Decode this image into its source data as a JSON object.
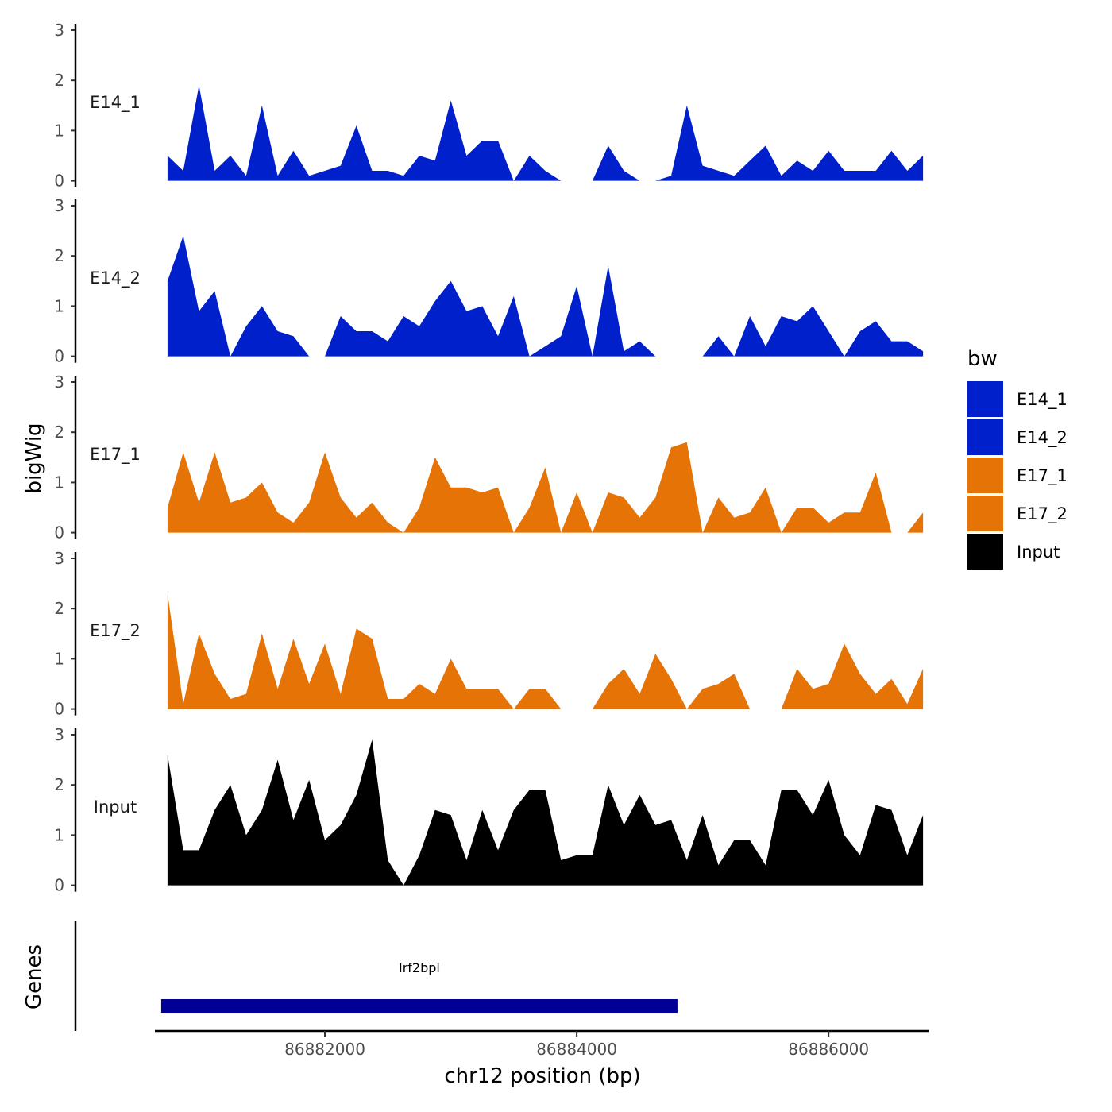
{
  "chart_data": {
    "type": "area",
    "ylabel": "bigWig",
    "xlabel": "chr12 position (bp)",
    "chromosome": "chr12",
    "xlim": [
      86880650,
      86886800
    ],
    "ylim": [
      0,
      3
    ],
    "y_ticks": [
      0,
      1,
      2,
      3
    ],
    "x_ticks": [
      86882000,
      86884000,
      86886000
    ],
    "x_tick_labels": [
      "86882000",
      "86884000",
      "86886000"
    ],
    "grid": false,
    "legend": {
      "title": "bw",
      "position": "right",
      "entries": [
        {
          "name": "E14_1",
          "color": "#0020cc"
        },
        {
          "name": "E14_2",
          "color": "#0020cc"
        },
        {
          "name": "E17_1",
          "color": "#e67305"
        },
        {
          "name": "E17_2",
          "color": "#e67305"
        },
        {
          "name": "Input",
          "color": "#000000"
        }
      ]
    },
    "x": [
      86880750,
      86880875,
      86881000,
      86881125,
      86881250,
      86881375,
      86881500,
      86881625,
      86881750,
      86881875,
      86882000,
      86882125,
      86882250,
      86882375,
      86882500,
      86882625,
      86882750,
      86882875,
      86883000,
      86883125,
      86883250,
      86883375,
      86883500,
      86883625,
      86883750,
      86883875,
      86884000,
      86884125,
      86884250,
      86884375,
      86884500,
      86884625,
      86884750,
      86884875,
      86885000,
      86885125,
      86885250,
      86885375,
      86885500,
      86885625,
      86885750,
      86885875,
      86886000,
      86886125,
      86886250,
      86886375,
      86886500,
      86886625,
      86886750
    ],
    "series": [
      {
        "name": "E14_1",
        "color": "#0020cc",
        "values": [
          0.5,
          0.2,
          1.9,
          0.2,
          0.5,
          0.1,
          1.5,
          0.1,
          0.6,
          0.1,
          0.2,
          0.3,
          1.1,
          0.2,
          0.2,
          0.1,
          0.5,
          0.4,
          1.6,
          0.5,
          0.8,
          0.8,
          0.0,
          0.5,
          0.2,
          0.0,
          0.0,
          0.0,
          0.7,
          0.2,
          0.0,
          0.0,
          0.1,
          1.5,
          0.3,
          0.2,
          0.1,
          0.4,
          0.7,
          0.1,
          0.4,
          0.2,
          0.6,
          0.2,
          0.2,
          0.2,
          0.6,
          0.2,
          0.5
        ]
      },
      {
        "name": "E14_2",
        "color": "#0020cc",
        "values": [
          1.5,
          2.4,
          0.9,
          1.3,
          0.0,
          0.6,
          1.0,
          0.5,
          0.4,
          0.0,
          0.0,
          0.8,
          0.5,
          0.5,
          0.3,
          0.8,
          0.6,
          1.1,
          1.5,
          0.9,
          1.0,
          0.4,
          1.2,
          0.0,
          0.2,
          0.4,
          1.4,
          0.0,
          1.8,
          0.1,
          0.3,
          0.0,
          0.0,
          0.0,
          0.0,
          0.4,
          0.0,
          0.8,
          0.2,
          0.8,
          0.7,
          1.0,
          0.5,
          0.0,
          0.5,
          0.7,
          0.3,
          0.3,
          0.1
        ]
      },
      {
        "name": "E17_1",
        "color": "#e67305",
        "values": [
          0.5,
          1.6,
          0.6,
          1.6,
          0.6,
          0.7,
          1.0,
          0.4,
          0.2,
          0.6,
          1.6,
          0.7,
          0.3,
          0.6,
          0.2,
          0.0,
          0.5,
          1.5,
          0.9,
          0.9,
          0.8,
          0.9,
          0.0,
          0.5,
          1.3,
          0.0,
          0.8,
          0.0,
          0.8,
          0.7,
          0.3,
          0.7,
          1.7,
          1.8,
          0.0,
          0.7,
          0.3,
          0.4,
          0.9,
          0.0,
          0.5,
          0.5,
          0.2,
          0.4,
          0.4,
          1.2,
          0.0,
          0.0,
          0.4
        ]
      },
      {
        "name": "E17_2",
        "color": "#e67305",
        "values": [
          2.3,
          0.1,
          1.5,
          0.7,
          0.2,
          0.3,
          1.5,
          0.4,
          1.4,
          0.5,
          1.3,
          0.3,
          1.6,
          1.4,
          0.2,
          0.2,
          0.5,
          0.3,
          1.0,
          0.4,
          0.4,
          0.4,
          0.0,
          0.4,
          0.4,
          0.0,
          0.0,
          0.0,
          0.5,
          0.8,
          0.3,
          1.1,
          0.6,
          0.0,
          0.4,
          0.5,
          0.7,
          0.0,
          0.0,
          0.0,
          0.8,
          0.4,
          0.5,
          1.3,
          0.7,
          0.3,
          0.6,
          0.1,
          0.8
        ]
      },
      {
        "name": "Input",
        "color": "#000000",
        "values": [
          2.6,
          0.7,
          0.7,
          1.5,
          2.0,
          1.0,
          1.5,
          2.5,
          1.3,
          2.1,
          0.9,
          1.2,
          1.8,
          2.9,
          0.5,
          0.0,
          0.6,
          1.5,
          1.4,
          0.5,
          1.5,
          0.7,
          1.5,
          1.9,
          1.9,
          0.5,
          0.6,
          0.6,
          2.0,
          1.2,
          1.8,
          1.2,
          1.3,
          0.5,
          1.4,
          0.4,
          0.9,
          0.9,
          0.4,
          1.9,
          1.9,
          1.4,
          2.1,
          1.0,
          0.6,
          1.6,
          1.5,
          0.6,
          1.4
        ]
      }
    ],
    "genes": {
      "track_label": "Genes",
      "items": [
        {
          "name": "Irf2bpl",
          "start": 86880700,
          "end": 86884800,
          "strand": "-",
          "color": "#000096"
        }
      ]
    }
  }
}
